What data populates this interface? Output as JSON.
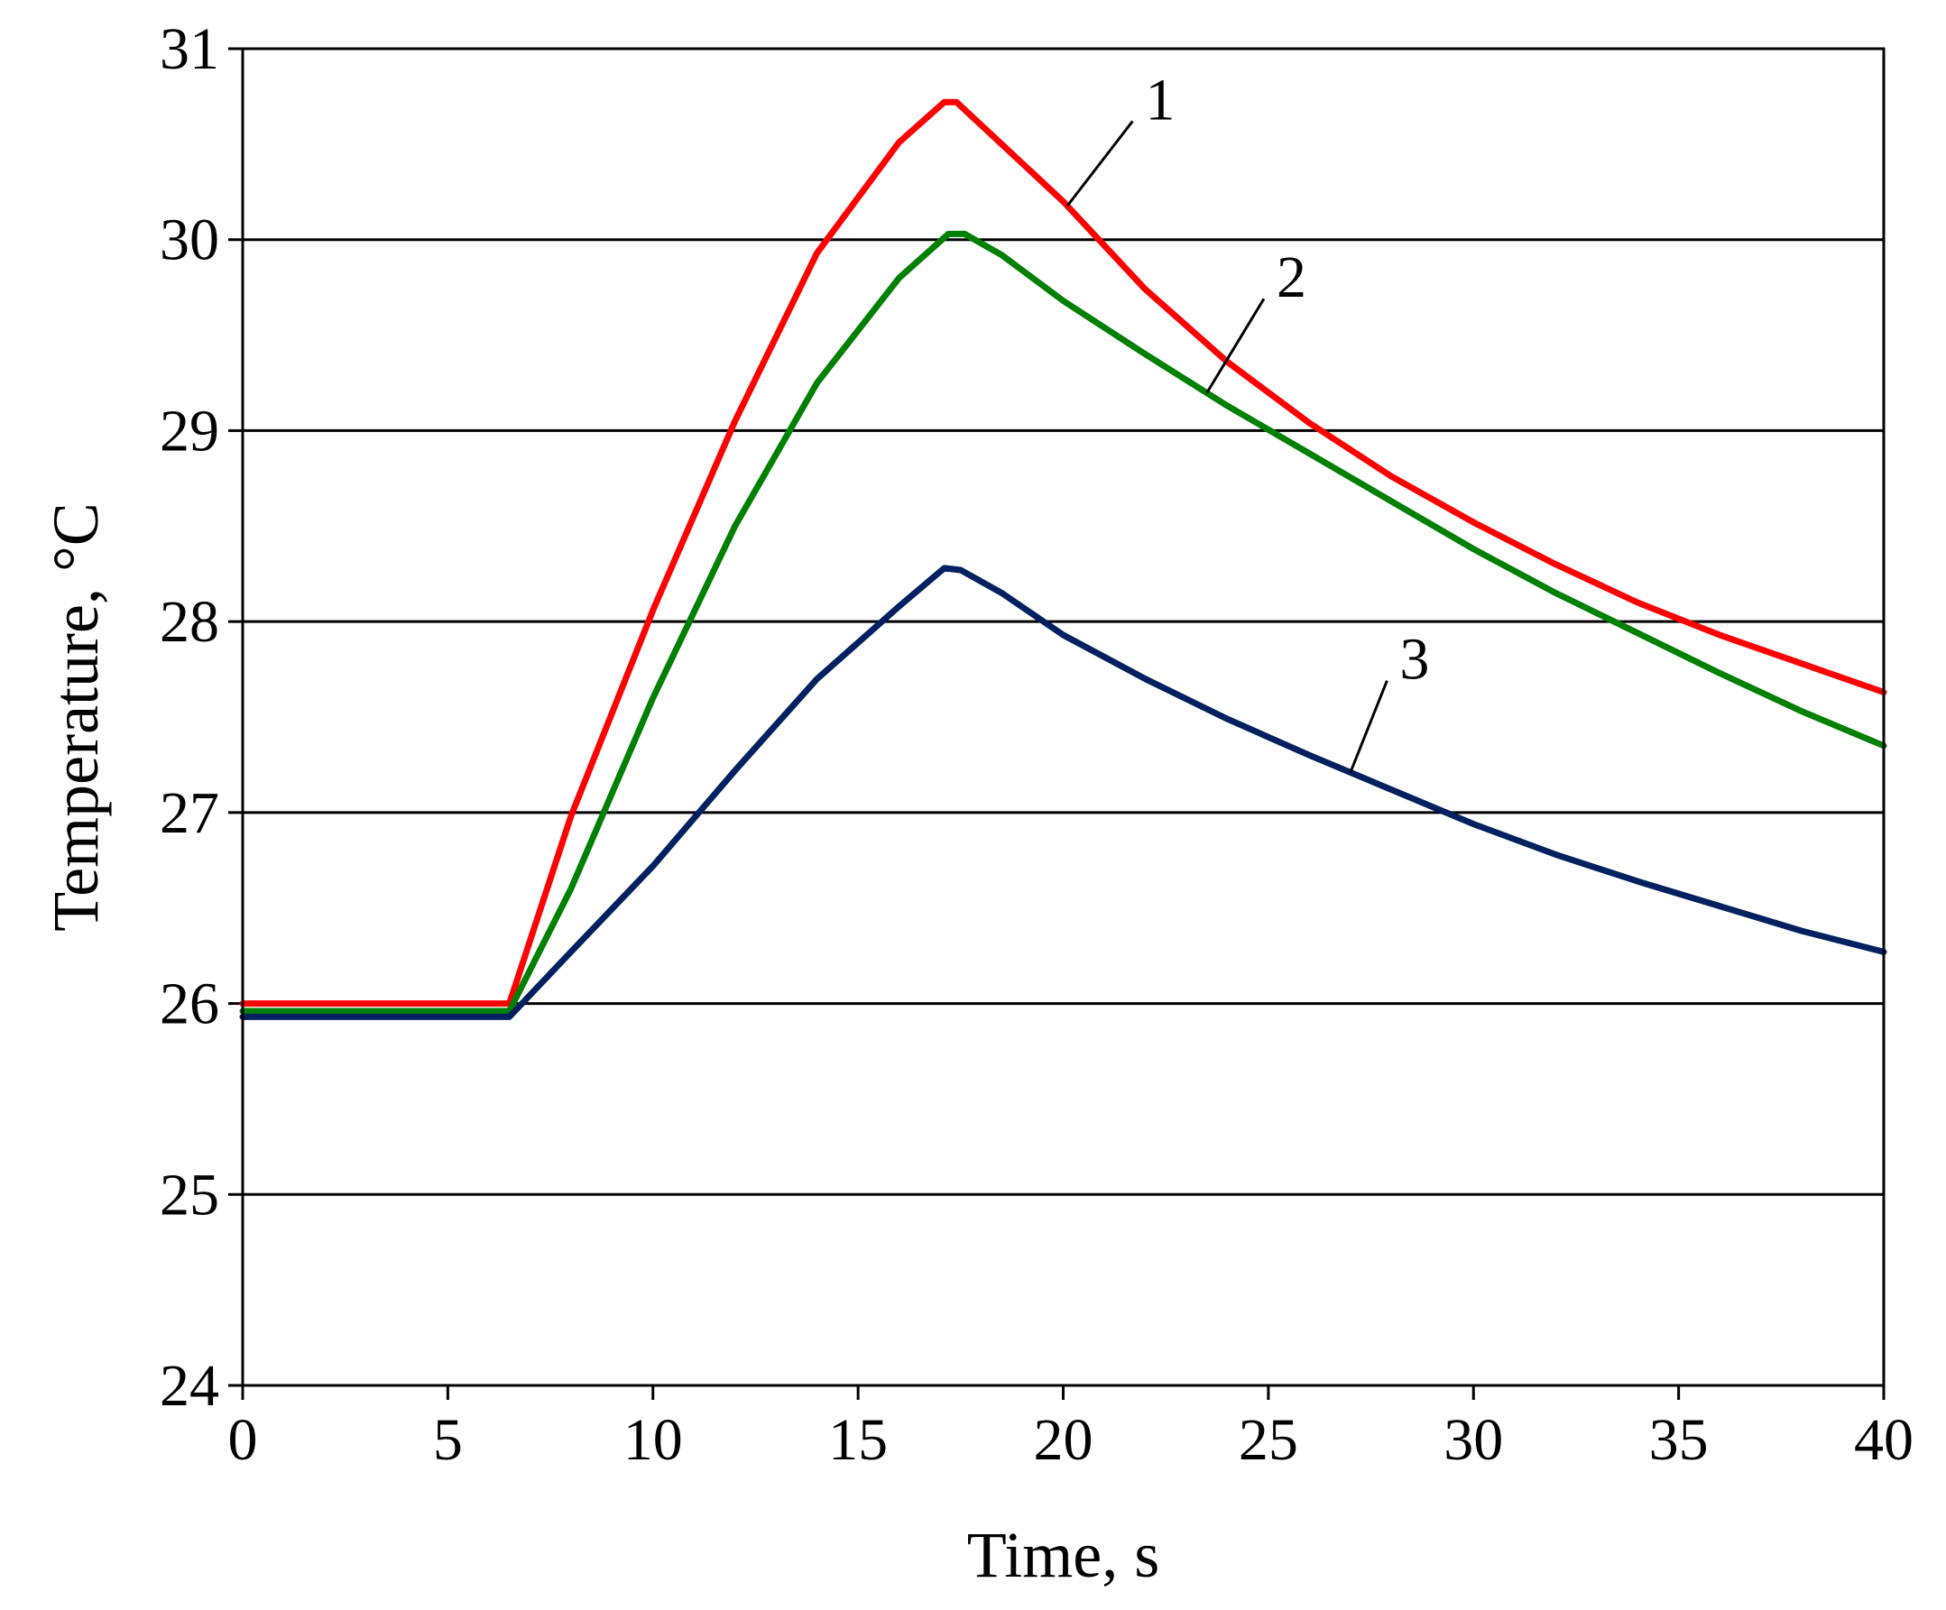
{
  "chart_data": {
    "type": "line",
    "title": "",
    "xlabel": "Time, s",
    "ylabel": "Temperature, °C",
    "xlim": [
      0,
      40
    ],
    "ylim": [
      24,
      31
    ],
    "xticks": [
      0,
      5,
      10,
      15,
      20,
      25,
      30,
      35,
      40
    ],
    "yticks": [
      24,
      25,
      26,
      27,
      28,
      29,
      30,
      31
    ],
    "grid": "horizontal",
    "legend": "none",
    "series": [
      {
        "name": "1",
        "color": "#ff0000",
        "points": [
          [
            0,
            26.0
          ],
          [
            6.5,
            26.0
          ],
          [
            8,
            26.98
          ],
          [
            10,
            28.06
          ],
          [
            12,
            29.05
          ],
          [
            14,
            29.93
          ],
          [
            16,
            30.51
          ],
          [
            17.1,
            30.72
          ],
          [
            17.4,
            30.72
          ],
          [
            18,
            30.6
          ],
          [
            20,
            30.2
          ],
          [
            22,
            29.74
          ],
          [
            24,
            29.36
          ],
          [
            26,
            29.04
          ],
          [
            28,
            28.76
          ],
          [
            30,
            28.52
          ],
          [
            32,
            28.3
          ],
          [
            34,
            28.1
          ],
          [
            36,
            27.93
          ],
          [
            38,
            27.78
          ],
          [
            40,
            27.63
          ]
        ]
      },
      {
        "name": "2",
        "color": "#008000",
        "points": [
          [
            0,
            25.96
          ],
          [
            6.5,
            25.96
          ],
          [
            8,
            26.6
          ],
          [
            10,
            27.6
          ],
          [
            12,
            28.5
          ],
          [
            14,
            29.25
          ],
          [
            16,
            29.8
          ],
          [
            17.2,
            30.03
          ],
          [
            17.6,
            30.03
          ],
          [
            18.5,
            29.92
          ],
          [
            20,
            29.68
          ],
          [
            22,
            29.4
          ],
          [
            24,
            29.13
          ],
          [
            26,
            28.88
          ],
          [
            28,
            28.63
          ],
          [
            30,
            28.38
          ],
          [
            32,
            28.15
          ],
          [
            34,
            27.94
          ],
          [
            36,
            27.73
          ],
          [
            38,
            27.53
          ],
          [
            40,
            27.35
          ]
        ]
      },
      {
        "name": "3",
        "color": "#002060",
        "points": [
          [
            0,
            25.93
          ],
          [
            6.5,
            25.93
          ],
          [
            8,
            26.27
          ],
          [
            10,
            26.72
          ],
          [
            12,
            27.22
          ],
          [
            14,
            27.7
          ],
          [
            16,
            28.08
          ],
          [
            17.1,
            28.28
          ],
          [
            17.5,
            28.27
          ],
          [
            18.5,
            28.15
          ],
          [
            20,
            27.93
          ],
          [
            22,
            27.7
          ],
          [
            24,
            27.49
          ],
          [
            26,
            27.3
          ],
          [
            28,
            27.12
          ],
          [
            30,
            26.94
          ],
          [
            32,
            26.78
          ],
          [
            34,
            26.64
          ],
          [
            36,
            26.51
          ],
          [
            38,
            26.38
          ],
          [
            40,
            26.27
          ]
        ]
      }
    ],
    "annotations": [
      {
        "text": "1",
        "series": "1",
        "leader_x": 20.1,
        "text_x": 22.0,
        "text_y": 30.63
      },
      {
        "text": "2",
        "series": "2",
        "leader_x": 23.5,
        "text_x": 25.2,
        "text_y": 29.7
      },
      {
        "text": "3",
        "series": "3",
        "leader_x": 27.0,
        "text_x": 28.2,
        "text_y": 27.7
      }
    ]
  }
}
